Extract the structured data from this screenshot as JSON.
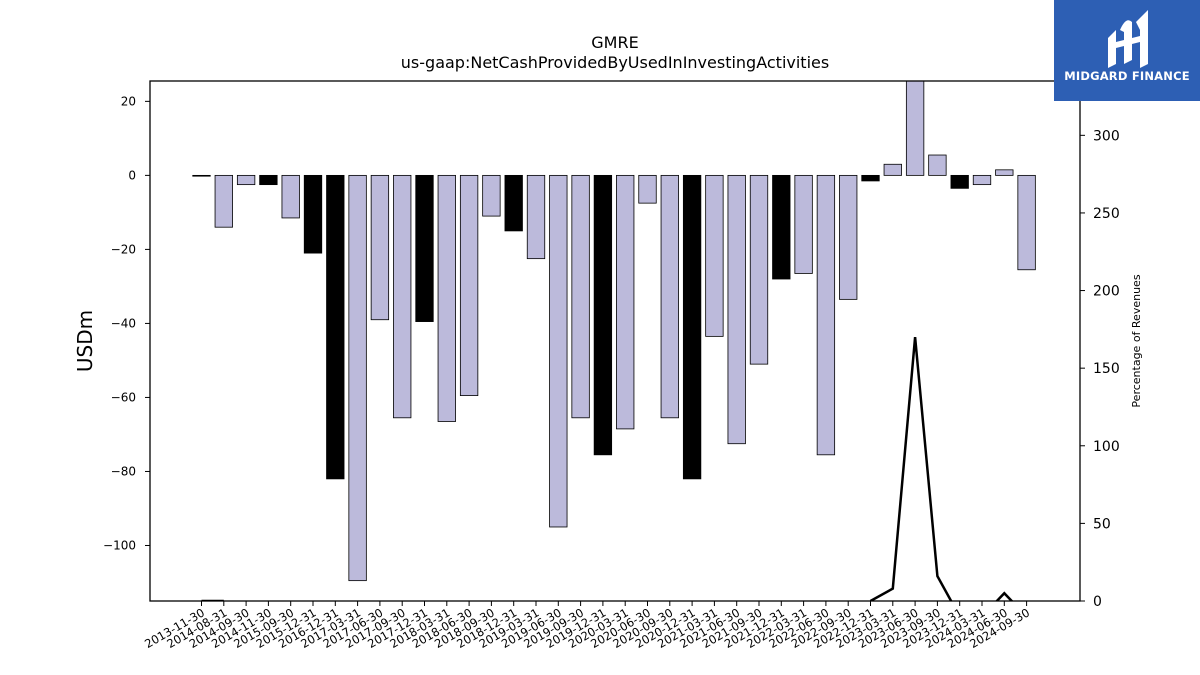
{
  "chart_data": {
    "type": "bar",
    "title": "GMRE",
    "subtitle": "us-gaap:NetCashProvidedByUsedInInvestingActivities",
    "ylabel": "USDm",
    "y2label": "Percentage of Revenues",
    "ylim": [
      -115,
      25.5
    ],
    "y2lim": [
      0,
      335
    ],
    "yticks": [
      20,
      0,
      -20,
      -40,
      -60,
      -80,
      -100
    ],
    "y2ticks": [
      0,
      50,
      100,
      150,
      200,
      250,
      300
    ],
    "categories": [
      "2013-11-30",
      "2014-08-31",
      "2014-09-30",
      "2014-11-30",
      "2015-09-30",
      "2015-12-31",
      "2016-12-31",
      "2017-03-31",
      "2017-06-30",
      "2017-09-30",
      "2017-12-31",
      "2018-03-31",
      "2018-06-30",
      "2018-09-30",
      "2018-12-31",
      "2019-03-31",
      "2019-06-30",
      "2019-09-30",
      "2019-12-31",
      "2020-03-31",
      "2020-06-30",
      "2020-09-30",
      "2020-12-31",
      "2021-03-31",
      "2021-06-30",
      "2021-09-30",
      "2021-12-31",
      "2022-03-31",
      "2022-06-30",
      "2022-09-30",
      "2022-12-31",
      "2023-03-31",
      "2023-06-30",
      "2023-09-30",
      "2023-12-31",
      "2024-03-31",
      "2024-06-30",
      "2024-09-30"
    ],
    "values": [
      -0.1,
      -14,
      -2.5,
      -2.5,
      -11.5,
      -21,
      -82,
      -109.5,
      -39,
      -65.5,
      -39.5,
      -66.5,
      -59.5,
      -11,
      -15,
      -22.5,
      -95,
      -65.5,
      -75.5,
      -68.5,
      -7.5,
      -65.5,
      -82,
      -43.5,
      -72.5,
      -51,
      -28,
      -26.5,
      -75.5,
      -33.5,
      -1.5,
      3,
      30,
      5.5,
      -3.5,
      -2.5,
      1.5,
      -25.5
    ],
    "bar_fill": [
      "#000000",
      "#bcbadb",
      "#bcbadb",
      "#000000",
      "#bcbadb",
      "#000000",
      "#000000",
      "#bcbadb",
      "#bcbadb",
      "#bcbadb",
      "#000000",
      "#bcbadb",
      "#bcbadb",
      "#bcbadb",
      "#000000",
      "#bcbadb",
      "#bcbadb",
      "#bcbadb",
      "#000000",
      "#bcbadb",
      "#bcbadb",
      "#bcbadb",
      "#000000",
      "#bcbadb",
      "#bcbadb",
      "#bcbadb",
      "#000000",
      "#bcbadb",
      "#bcbadb",
      "#bcbadb",
      "#000000",
      "#bcbadb",
      "#bcbadb",
      "#bcbadb",
      "#000000",
      "#bcbadb",
      "#bcbadb",
      "#bcbadb"
    ],
    "line_series": {
      "name": "Percentage of Revenues",
      "axis": "right",
      "values": [
        0,
        0,
        null,
        null,
        null,
        null,
        null,
        null,
        null,
        null,
        null,
        null,
        null,
        null,
        null,
        null,
        null,
        null,
        null,
        null,
        null,
        null,
        null,
        null,
        null,
        null,
        null,
        null,
        null,
        null,
        0,
        8,
        170,
        16,
        -10,
        -10,
        5,
        -10
      ]
    }
  },
  "logo": {
    "text": "MIDGARD FINANCE"
  },
  "colors": {
    "bar_light": "#bcbadb",
    "bar_dark": "#000000",
    "logo_bg": "#2d5fb4"
  }
}
